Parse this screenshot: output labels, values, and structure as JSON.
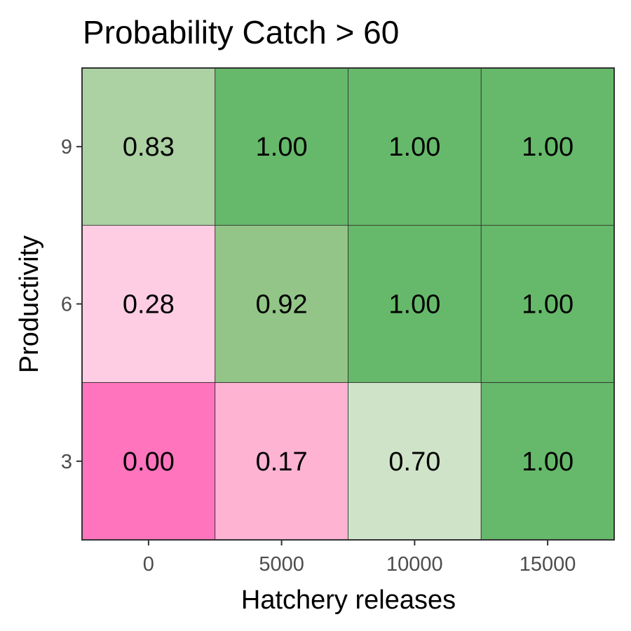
{
  "chart_data": {
    "type": "heatmap",
    "title": "Probability Catch > 60",
    "xlabel": "Hatchery releases",
    "ylabel": "Productivity",
    "x_categories": [
      "0",
      "5000",
      "10000",
      "15000"
    ],
    "y_categories": [
      "3",
      "6",
      "9"
    ],
    "cells": [
      {
        "x": "0",
        "y": "9",
        "value": 0.83,
        "label": "0.83",
        "color": "#acd1a3"
      },
      {
        "x": "5000",
        "y": "9",
        "value": 1.0,
        "label": "1.00",
        "color": "#66b96a"
      },
      {
        "x": "10000",
        "y": "9",
        "value": 1.0,
        "label": "1.00",
        "color": "#66b96a"
      },
      {
        "x": "15000",
        "y": "9",
        "value": 1.0,
        "label": "1.00",
        "color": "#66b96a"
      },
      {
        "x": "0",
        "y": "6",
        "value": 0.28,
        "label": "0.28",
        "color": "#ffcde3"
      },
      {
        "x": "5000",
        "y": "6",
        "value": 0.92,
        "label": "0.92",
        "color": "#92c587"
      },
      {
        "x": "10000",
        "y": "6",
        "value": 1.0,
        "label": "1.00",
        "color": "#66b96a"
      },
      {
        "x": "15000",
        "y": "6",
        "value": 1.0,
        "label": "1.00",
        "color": "#66b96a"
      },
      {
        "x": "0",
        "y": "3",
        "value": 0.0,
        "label": "0.00",
        "color": "#ff74bd"
      },
      {
        "x": "5000",
        "y": "3",
        "value": 0.17,
        "label": "0.17",
        "color": "#ffb3d3"
      },
      {
        "x": "10000",
        "y": "3",
        "value": 0.7,
        "label": "0.70",
        "color": "#cfe3c9"
      },
      {
        "x": "15000",
        "y": "3",
        "value": 1.0,
        "label": "1.00",
        "color": "#66b96a"
      }
    ],
    "legend": "none",
    "grid": false
  }
}
